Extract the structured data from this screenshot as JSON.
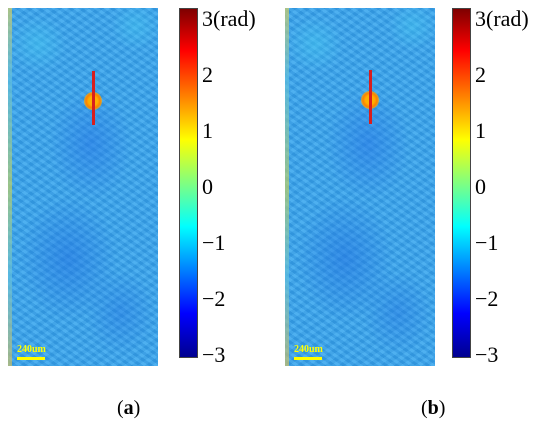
{
  "scale_bar_text": "240um",
  "colorbar": {
    "ticks": [
      "3(rad)",
      "2",
      "1",
      "0",
      "−1",
      "−2",
      "−3"
    ],
    "range": [
      -3,
      3
    ],
    "colormap": "jet"
  },
  "panels": [
    {
      "label_open": "(",
      "label_letter": "a",
      "label_close": ")"
    },
    {
      "label_open": "(",
      "label_letter": "b",
      "label_close": ")"
    }
  ],
  "colors": {
    "background_phase": "#37a6ee",
    "marker_line": "#d81e1e",
    "hotspot": "#ff9a00",
    "scale_text": "#ffff00"
  }
}
